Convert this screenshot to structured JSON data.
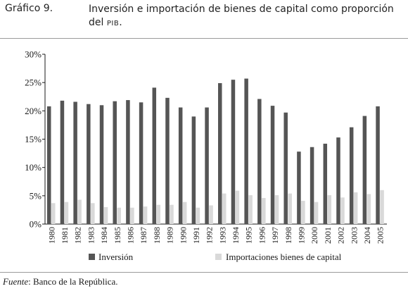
{
  "header": {
    "label": "Gráfico 9.",
    "title_main": "Inversión e importación de bienes de capital como proporción del ",
    "title_abbr": "PIB",
    "title_end": "."
  },
  "source": {
    "label": "Fuente",
    "text": ": Banco de la República."
  },
  "colors": {
    "inversion": "#555555",
    "importaciones": "#d9d9d9",
    "axis": "#1a1a1a"
  },
  "chart_data": {
    "type": "bar",
    "title": "",
    "xlabel": "",
    "ylabel": "",
    "ylim": [
      0,
      30
    ],
    "yticks": [
      "0%",
      "5%",
      "10%",
      "15%",
      "20%",
      "25%",
      "30%"
    ],
    "grid": false,
    "legend_position": "bottom",
    "categories": [
      "1980",
      "1981",
      "1982",
      "1983",
      "1984",
      "1985",
      "1986",
      "1987",
      "1988",
      "1989",
      "1990",
      "1991",
      "1992",
      "1993",
      "1994",
      "1995",
      "1996",
      "1997",
      "1998",
      "1999",
      "2000",
      "2001",
      "2002",
      "2003",
      "2004",
      "2005"
    ],
    "series": [
      {
        "name": "Inversión",
        "values": [
          20.8,
          21.8,
          21.6,
          21.2,
          21.0,
          21.7,
          21.9,
          21.5,
          24.1,
          22.3,
          20.6,
          19.0,
          20.6,
          24.9,
          25.5,
          25.7,
          22.1,
          20.9,
          19.7,
          12.8,
          13.6,
          14.2,
          15.3,
          17.1,
          19.1,
          20.8
        ]
      },
      {
        "name": "Importaciones bienes de capital",
        "values": [
          3.7,
          3.9,
          4.3,
          3.7,
          3.0,
          2.9,
          2.9,
          3.1,
          3.4,
          3.4,
          3.9,
          2.9,
          3.3,
          5.4,
          5.9,
          5.1,
          4.6,
          5.1,
          5.4,
          4.1,
          3.9,
          5.1,
          4.7,
          5.6,
          5.3,
          6.0
        ]
      }
    ]
  }
}
